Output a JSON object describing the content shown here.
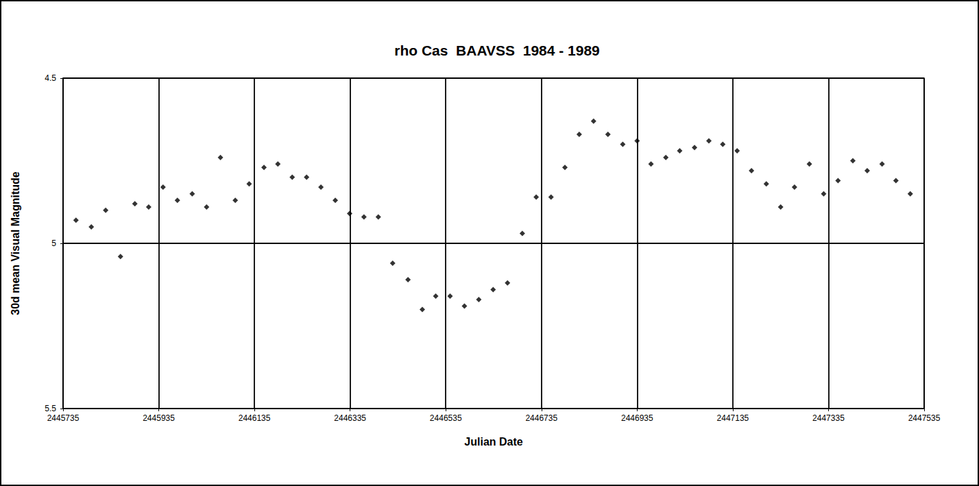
{
  "chart_data": {
    "type": "scatter",
    "title": "rho Cas  BAAVSS  1984 - 1989",
    "x_label": "Julian Date",
    "y_label": "30d mean Visual Magnitude",
    "x": [
      2445762,
      2445794,
      2445824,
      2445855,
      2445885,
      2445914,
      2445944,
      2445974,
      2446005,
      2446035,
      2446064,
      2446095,
      2446124,
      2446155,
      2446184,
      2446214,
      2446244,
      2446274,
      2446304,
      2446334,
      2446364,
      2446394,
      2446424,
      2446456,
      2446486,
      2446514,
      2446544,
      2446574,
      2446604,
      2446634,
      2446664,
      2446695,
      2446724,
      2446755,
      2446784,
      2446814,
      2446844,
      2446874,
      2446905,
      2446935,
      2446964,
      2446995,
      2447024,
      2447055,
      2447085,
      2447114,
      2447144,
      2447174,
      2447205,
      2447235,
      2447264,
      2447295,
      2447325,
      2447355,
      2447386,
      2447416,
      2447447,
      2447476,
      2447506
    ],
    "values": [
      4.93,
      4.95,
      4.9,
      5.04,
      4.88,
      4.89,
      4.83,
      4.87,
      4.85,
      4.89,
      4.74,
      4.87,
      4.82,
      4.77,
      4.76,
      4.8,
      4.8,
      4.83,
      4.87,
      4.91,
      4.92,
      4.92,
      5.06,
      5.11,
      5.2,
      5.16,
      5.16,
      5.19,
      5.17,
      5.14,
      5.12,
      4.97,
      4.86,
      4.86,
      4.77,
      4.67,
      4.63,
      4.67,
      4.7,
      4.69,
      4.76,
      4.74,
      4.72,
      4.71,
      4.69,
      4.7,
      4.72,
      4.78,
      4.82,
      4.89,
      4.83,
      4.76,
      4.85,
      4.81,
      4.75,
      4.78,
      4.76,
      4.81,
      4.85
    ],
    "color": "#000000",
    "marker": "diamond",
    "xlim": [
      2445735,
      2447535
    ],
    "xticks": [
      2445735,
      2445935,
      2446135,
      2446335,
      2446535,
      2446735,
      2446935,
      2447135,
      2447335,
      2447535
    ],
    "ylim": [
      5.5,
      4.5
    ],
    "yticks": [
      4.5,
      5,
      5.5
    ],
    "grid": true
  }
}
